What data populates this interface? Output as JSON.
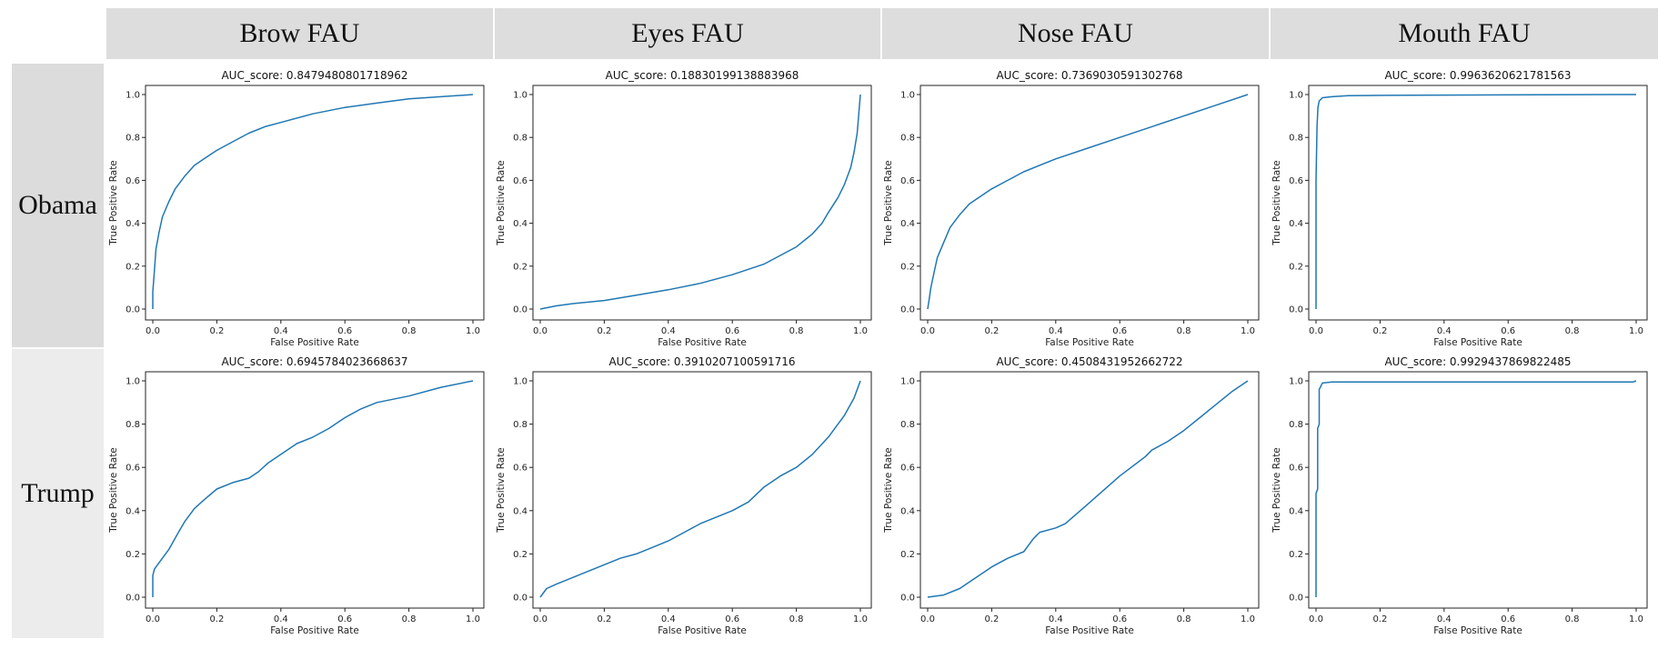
{
  "header": {
    "columns": [
      "Brow FAU",
      "Eyes FAU",
      "Nose FAU",
      "Mouth FAU"
    ],
    "rows": [
      "Obama",
      "Trump"
    ]
  },
  "colors": {
    "line": "#1f77b4",
    "header_bg": "#dddddd"
  },
  "chart_data": [
    {
      "type": "line",
      "title": "AUC_score: 0.8479480801718962",
      "xlabel": "False Positive Rate",
      "ylabel": "True Positive Rate",
      "xlim": [
        0,
        1
      ],
      "ylim": [
        0,
        1
      ],
      "xticks": [
        "0.0",
        "0.2",
        "0.4",
        "0.6",
        "0.8",
        "1.0"
      ],
      "yticks": [
        "0.0",
        "0.2",
        "0.4",
        "0.6",
        "0.8",
        "1.0"
      ],
      "x": [
        0,
        0,
        0.005,
        0.01,
        0.02,
        0.03,
        0.05,
        0.07,
        0.1,
        0.13,
        0.17,
        0.2,
        0.25,
        0.3,
        0.35,
        0.4,
        0.5,
        0.6,
        0.7,
        0.8,
        0.9,
        1.0
      ],
      "y": [
        0,
        0.08,
        0.18,
        0.28,
        0.36,
        0.43,
        0.5,
        0.56,
        0.62,
        0.67,
        0.71,
        0.74,
        0.78,
        0.82,
        0.85,
        0.87,
        0.91,
        0.94,
        0.96,
        0.98,
        0.99,
        1.0
      ]
    },
    {
      "type": "line",
      "title": "AUC_score: 0.18830199138883968",
      "xlabel": "False Positive Rate",
      "ylabel": "True Positive Rate",
      "xlim": [
        0,
        1
      ],
      "ylim": [
        0,
        1
      ],
      "xticks": [
        "0.0",
        "0.2",
        "0.4",
        "0.6",
        "0.8",
        "1.0"
      ],
      "yticks": [
        "0.0",
        "0.2",
        "0.4",
        "0.6",
        "0.8",
        "1.0"
      ],
      "x": [
        0,
        0.05,
        0.1,
        0.2,
        0.3,
        0.4,
        0.5,
        0.6,
        0.7,
        0.75,
        0.8,
        0.85,
        0.88,
        0.9,
        0.93,
        0.95,
        0.97,
        0.98,
        0.99,
        1.0
      ],
      "y": [
        0,
        0.015,
        0.025,
        0.04,
        0.065,
        0.09,
        0.12,
        0.16,
        0.21,
        0.25,
        0.29,
        0.35,
        0.4,
        0.45,
        0.52,
        0.58,
        0.66,
        0.73,
        0.82,
        1.0
      ]
    },
    {
      "type": "line",
      "title": "AUC_score: 0.7369030591302768",
      "xlabel": "False Positive Rate",
      "ylabel": "True Positive Rate",
      "xlim": [
        0,
        1
      ],
      "ylim": [
        0,
        1
      ],
      "xticks": [
        "0.0",
        "0.2",
        "0.4",
        "0.6",
        "0.8",
        "1.0"
      ],
      "yticks": [
        "0.0",
        "0.2",
        "0.4",
        "0.6",
        "0.8",
        "1.0"
      ],
      "x": [
        0,
        0.005,
        0.01,
        0.02,
        0.03,
        0.05,
        0.07,
        0.1,
        0.13,
        0.17,
        0.2,
        0.25,
        0.3,
        0.4,
        0.5,
        0.6,
        0.7,
        0.8,
        0.9,
        1.0
      ],
      "y": [
        0,
        0.05,
        0.1,
        0.17,
        0.24,
        0.31,
        0.38,
        0.44,
        0.49,
        0.53,
        0.56,
        0.6,
        0.64,
        0.7,
        0.75,
        0.8,
        0.85,
        0.9,
        0.95,
        1.0
      ]
    },
    {
      "type": "line",
      "title": "AUC_score: 0.9963620621781563",
      "xlabel": "False Positive Rate",
      "ylabel": "True Positive Rate",
      "xlim": [
        0,
        1
      ],
      "ylim": [
        0,
        1
      ],
      "xticks": [
        "0.0",
        "0.2",
        "0.4",
        "0.6",
        "0.8",
        "1.0"
      ],
      "yticks": [
        "0.0",
        "0.2",
        "0.4",
        "0.6",
        "0.8",
        "1.0"
      ],
      "x": [
        0,
        0,
        0.003,
        0.006,
        0.01,
        0.02,
        0.05,
        0.1,
        0.3,
        0.5,
        1.0
      ],
      "y": [
        0,
        0.6,
        0.85,
        0.94,
        0.97,
        0.985,
        0.99,
        0.995,
        0.997,
        0.998,
        1.0
      ]
    },
    {
      "type": "line",
      "title": "AUC_score: 0.6945784023668637",
      "xlabel": "False Positive Rate",
      "ylabel": "True Positive Rate",
      "xlim": [
        0,
        1
      ],
      "ylim": [
        0,
        1
      ],
      "xticks": [
        "0.0",
        "0.2",
        "0.4",
        "0.6",
        "0.8",
        "1.0"
      ],
      "yticks": [
        "0.0",
        "0.2",
        "0.4",
        "0.6",
        "0.8",
        "1.0"
      ],
      "x": [
        0,
        0,
        0.005,
        0.02,
        0.05,
        0.08,
        0.1,
        0.13,
        0.16,
        0.2,
        0.25,
        0.3,
        0.33,
        0.36,
        0.4,
        0.45,
        0.5,
        0.55,
        0.6,
        0.65,
        0.7,
        0.8,
        0.9,
        1.0
      ],
      "y": [
        0,
        0.1,
        0.13,
        0.16,
        0.22,
        0.3,
        0.35,
        0.41,
        0.45,
        0.5,
        0.53,
        0.55,
        0.58,
        0.62,
        0.66,
        0.71,
        0.74,
        0.78,
        0.83,
        0.87,
        0.9,
        0.93,
        0.97,
        1.0
      ]
    },
    {
      "type": "line",
      "title": "AUC_score: 0.3910207100591716",
      "xlabel": "False Positive Rate",
      "ylabel": "True Positive Rate",
      "xlim": [
        0,
        1
      ],
      "ylim": [
        0,
        1
      ],
      "xticks": [
        "0.0",
        "0.2",
        "0.4",
        "0.6",
        "0.8",
        "1.0"
      ],
      "yticks": [
        "0.0",
        "0.2",
        "0.4",
        "0.6",
        "0.8",
        "1.0"
      ],
      "x": [
        0,
        0.02,
        0.05,
        0.1,
        0.15,
        0.2,
        0.25,
        0.3,
        0.35,
        0.4,
        0.45,
        0.5,
        0.55,
        0.6,
        0.65,
        0.7,
        0.75,
        0.8,
        0.85,
        0.9,
        0.95,
        0.98,
        1.0
      ],
      "y": [
        0,
        0.04,
        0.06,
        0.09,
        0.12,
        0.15,
        0.18,
        0.2,
        0.23,
        0.26,
        0.3,
        0.34,
        0.37,
        0.4,
        0.44,
        0.51,
        0.56,
        0.6,
        0.66,
        0.74,
        0.84,
        0.92,
        1.0
      ]
    },
    {
      "type": "line",
      "title": "AUC_score: 0.4508431952662722",
      "xlabel": "False Positive Rate",
      "ylabel": "True Positive Rate",
      "xlim": [
        0,
        1
      ],
      "ylim": [
        0,
        1
      ],
      "xticks": [
        "0.0",
        "0.2",
        "0.4",
        "0.6",
        "0.8",
        "1.0"
      ],
      "yticks": [
        "0.0",
        "0.2",
        "0.4",
        "0.6",
        "0.8",
        "1.0"
      ],
      "x": [
        0,
        0.05,
        0.1,
        0.15,
        0.2,
        0.25,
        0.3,
        0.33,
        0.35,
        0.4,
        0.43,
        0.5,
        0.6,
        0.68,
        0.7,
        0.75,
        0.8,
        0.85,
        0.9,
        0.95,
        1.0
      ],
      "y": [
        0,
        0.01,
        0.04,
        0.09,
        0.14,
        0.18,
        0.21,
        0.27,
        0.3,
        0.32,
        0.34,
        0.43,
        0.56,
        0.65,
        0.68,
        0.72,
        0.77,
        0.83,
        0.89,
        0.95,
        1.0
      ]
    },
    {
      "type": "line",
      "title": "AUC_score: 0.9929437869822485",
      "xlabel": "False Positive Rate",
      "ylabel": "True Positive Rate",
      "xlim": [
        0,
        1
      ],
      "ylim": [
        0,
        1
      ],
      "xticks": [
        "0.0",
        "0.2",
        "0.4",
        "0.6",
        "0.8",
        "1.0"
      ],
      "yticks": [
        "0.0",
        "0.2",
        "0.4",
        "0.6",
        "0.8",
        "1.0"
      ],
      "x": [
        0,
        0,
        0.005,
        0.005,
        0.01,
        0.01,
        0.02,
        0.05,
        0.2,
        0.5,
        0.99,
        1.0
      ],
      "y": [
        0,
        0.48,
        0.5,
        0.78,
        0.8,
        0.96,
        0.99,
        0.995,
        0.995,
        0.995,
        0.995,
        1.0
      ]
    }
  ]
}
